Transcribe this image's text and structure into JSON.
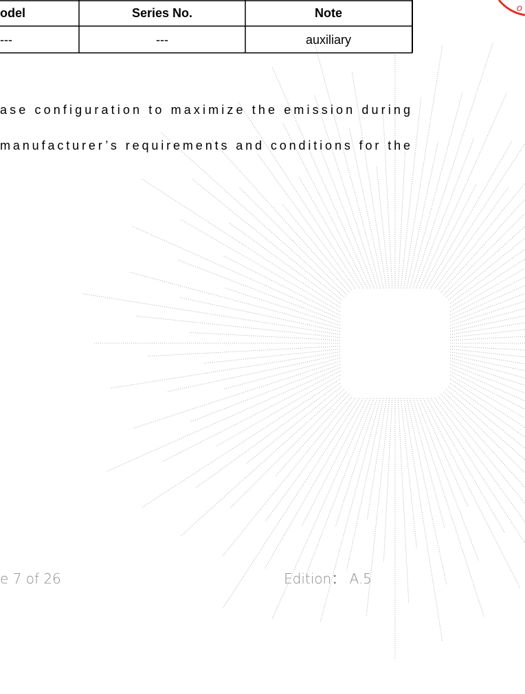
{
  "table": {
    "headers": [
      "odel",
      "Series No.",
      "Note"
    ],
    "rows": [
      [
        "---",
        "---",
        "auxiliary"
      ]
    ]
  },
  "paragraph": [
    "ase configuration to maximize the emission during",
    "manufacturer’s requirements and conditions for the"
  ],
  "footer": {
    "page": "e 7 of 26",
    "edition": "Edition： A.5"
  }
}
